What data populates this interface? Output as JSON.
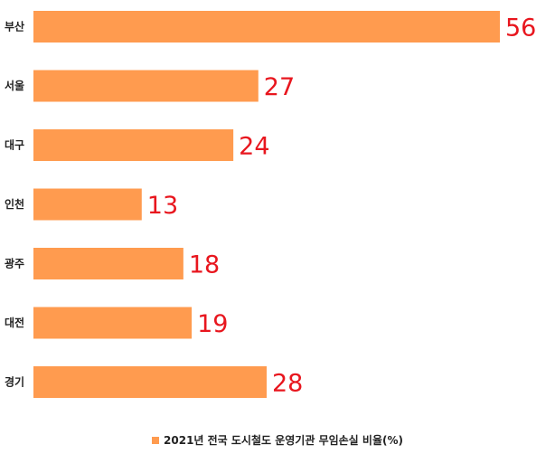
{
  "chart_data": {
    "type": "bar",
    "orientation": "horizontal",
    "categories": [
      "부산",
      "서울",
      "대구",
      "인천",
      "광주",
      "대전",
      "경기"
    ],
    "series": [
      {
        "name": "2021년 전국 도시철도 운영기관 무임손실 비율(%)",
        "values": [
          56,
          27,
          24,
          13,
          18,
          19,
          28
        ]
      }
    ],
    "xlim": [
      0,
      56
    ],
    "grid": false,
    "legend_position": "bottom",
    "colors": {
      "bar": "#FF9B4F",
      "value_label": "#E8161E"
    }
  }
}
